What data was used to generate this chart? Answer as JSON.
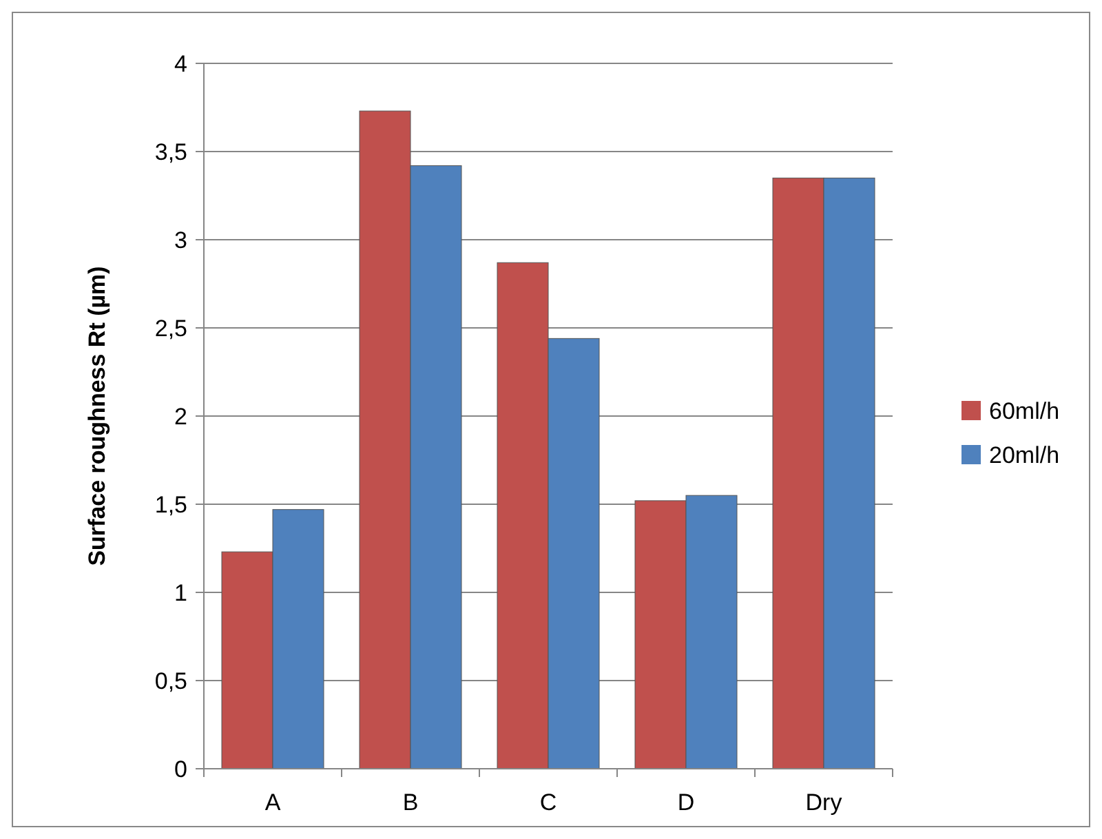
{
  "chart_data": {
    "type": "bar",
    "ylabel": "Surface roughness Rt (µm)",
    "categories": [
      "A",
      "B",
      "C",
      "D",
      "Dry"
    ],
    "series": [
      {
        "name": "60ml/h",
        "color": "#c0504d",
        "values": [
          1.23,
          3.73,
          2.87,
          1.52,
          3.35
        ]
      },
      {
        "name": "20ml/h",
        "color": "#4f81bd",
        "values": [
          1.47,
          3.42,
          2.44,
          1.55,
          3.35
        ]
      }
    ],
    "ylim": [
      0,
      4
    ],
    "yticks": [
      0,
      {
        "value": 0.5,
        "label": "0,5"
      },
      1,
      {
        "value": 1.5,
        "label": "1,5"
      },
      2,
      {
        "value": 2.5,
        "label": "2,5"
      },
      3,
      {
        "value": 3.5,
        "label": "3,5"
      },
      4
    ],
    "grid": "y",
    "legend": "right"
  }
}
